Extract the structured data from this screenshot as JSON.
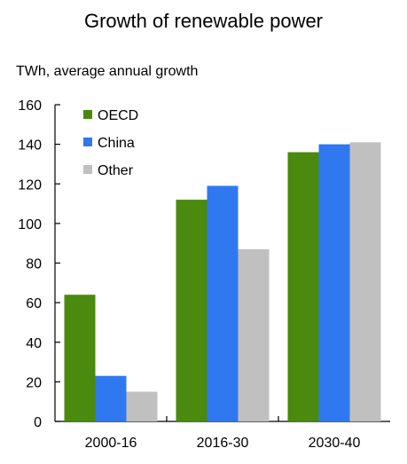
{
  "chart_data": {
    "type": "bar",
    "title": "Growth of renewable power",
    "ylabel": "TWh, average annual growth",
    "xlabel": "",
    "categories": [
      "2000-16",
      "2016-30",
      "2030-40"
    ],
    "series": [
      {
        "name": "OECD",
        "color": "#4a8a0e",
        "values": [
          64,
          112,
          136
        ]
      },
      {
        "name": "China",
        "color": "#2f78f0",
        "values": [
          23,
          119,
          140
        ]
      },
      {
        "name": "Other",
        "color": "#c0c0c0",
        "values": [
          15,
          87,
          141
        ]
      }
    ],
    "ylim": [
      0,
      160
    ],
    "yticks": [
      0,
      20,
      40,
      60,
      80,
      100,
      120,
      140,
      160
    ],
    "legend_position": "top-left",
    "grid": false
  }
}
